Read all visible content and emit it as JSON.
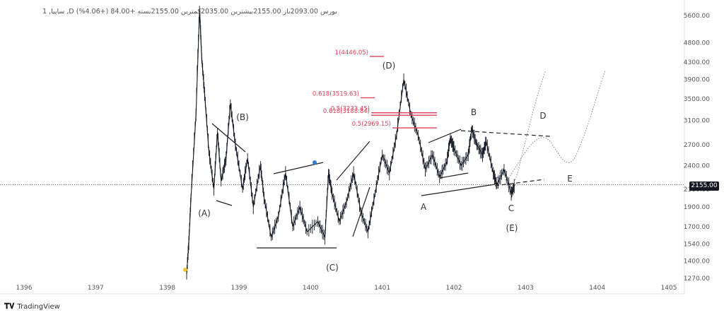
{
  "header": {
    "text": "1 ,ساپیا ,D بورس  2093.00باز  2155.00بیشترین  2035.00کمترین  2155.00بسته  +84.00  (+4.06%)"
  },
  "last_price": "2155.00",
  "brand": {
    "logo": "tradingview-logo-icon",
    "name": "TradingView"
  },
  "colors": {
    "price": "#131722",
    "fib": "#e0405a",
    "lines": "#222222",
    "axis_text": "#555555",
    "dot_blue": "#2e7dd7",
    "dot_yellow": "#f2c12e"
  },
  "chart_data": {
    "type": "line",
    "x_ticks": [
      "1396",
      "1397",
      "1398",
      "1399",
      "1400",
      "1401",
      "1402",
      "1403",
      "1404",
      "1405"
    ],
    "y_ticks": [
      "5600.00",
      "4800.00",
      "4300.00",
      "3900.00",
      "3500.00",
      "3100.00",
      "2700.00",
      "2400.00",
      "2100.00",
      "1900.00",
      "1700.00",
      "1540.00",
      "1400.00",
      "1270.00"
    ],
    "y_scale": "log",
    "current_price": 2155,
    "series": [
      {
        "values": [
          [
            1398.27,
            1300
          ],
          [
            1398.3,
            1550
          ],
          [
            1398.33,
            2000
          ],
          [
            1398.4,
            3200
          ],
          [
            1398.45,
            5800
          ],
          [
            1398.48,
            4400
          ],
          [
            1398.52,
            3600
          ],
          [
            1398.58,
            2600
          ],
          [
            1398.65,
            2100
          ],
          [
            1398.7,
            2900
          ],
          [
            1398.75,
            2200
          ],
          [
            1398.82,
            2500
          ],
          [
            1398.88,
            3400
          ],
          [
            1398.95,
            2700
          ],
          [
            1399.05,
            2100
          ],
          [
            1399.12,
            2500
          ],
          [
            1399.2,
            1900
          ],
          [
            1399.3,
            2400
          ],
          [
            1399.35,
            2000
          ],
          [
            1399.45,
            1600
          ],
          [
            1399.55,
            1800
          ],
          [
            1399.65,
            2300
          ],
          [
            1399.75,
            1700
          ],
          [
            1399.85,
            1900
          ],
          [
            1399.95,
            1650
          ],
          [
            1400.1,
            1750
          ],
          [
            1400.2,
            1600
          ],
          [
            1400.25,
            2300
          ],
          [
            1400.3,
            2050
          ],
          [
            1400.4,
            1750
          ],
          [
            1400.5,
            1950
          ],
          [
            1400.6,
            2300
          ],
          [
            1400.7,
            1850
          ],
          [
            1400.8,
            1650
          ],
          [
            1400.9,
            2050
          ],
          [
            1401.0,
            2550
          ],
          [
            1401.1,
            2300
          ],
          [
            1401.2,
            2850
          ],
          [
            1401.3,
            3900
          ],
          [
            1401.4,
            3200
          ],
          [
            1401.5,
            2850
          ],
          [
            1401.6,
            2350
          ],
          [
            1401.7,
            2550
          ],
          [
            1401.8,
            2250
          ],
          [
            1401.9,
            2450
          ],
          [
            1401.95,
            2800
          ],
          [
            1402.0,
            2650
          ],
          [
            1402.1,
            2400
          ],
          [
            1402.2,
            2550
          ],
          [
            1402.25,
            2950
          ],
          [
            1402.32,
            2700
          ],
          [
            1402.4,
            2550
          ],
          [
            1402.45,
            2750
          ],
          [
            1402.55,
            2300
          ],
          [
            1402.6,
            2150
          ],
          [
            1402.7,
            2350
          ],
          [
            1402.8,
            2050
          ],
          [
            1402.85,
            2155
          ]
        ]
      }
    ],
    "fib_levels": [
      {
        "label": "1(4446.05)",
        "value": 4446.05
      },
      {
        "label": "0.618(3519.63)",
        "value": 3519.63
      },
      {
        "label": "0.5(3233.45)",
        "value": 3233.45
      },
      {
        "label": "0.618(3188.84)",
        "value": 3188.84
      },
      {
        "label": "0.5(2969.15)",
        "value": 2969.15
      }
    ],
    "wave_labels": [
      "(A)",
      "(B)",
      "(C)",
      "(D)",
      "(E)",
      "A",
      "B",
      "C",
      "D",
      "E"
    ]
  }
}
